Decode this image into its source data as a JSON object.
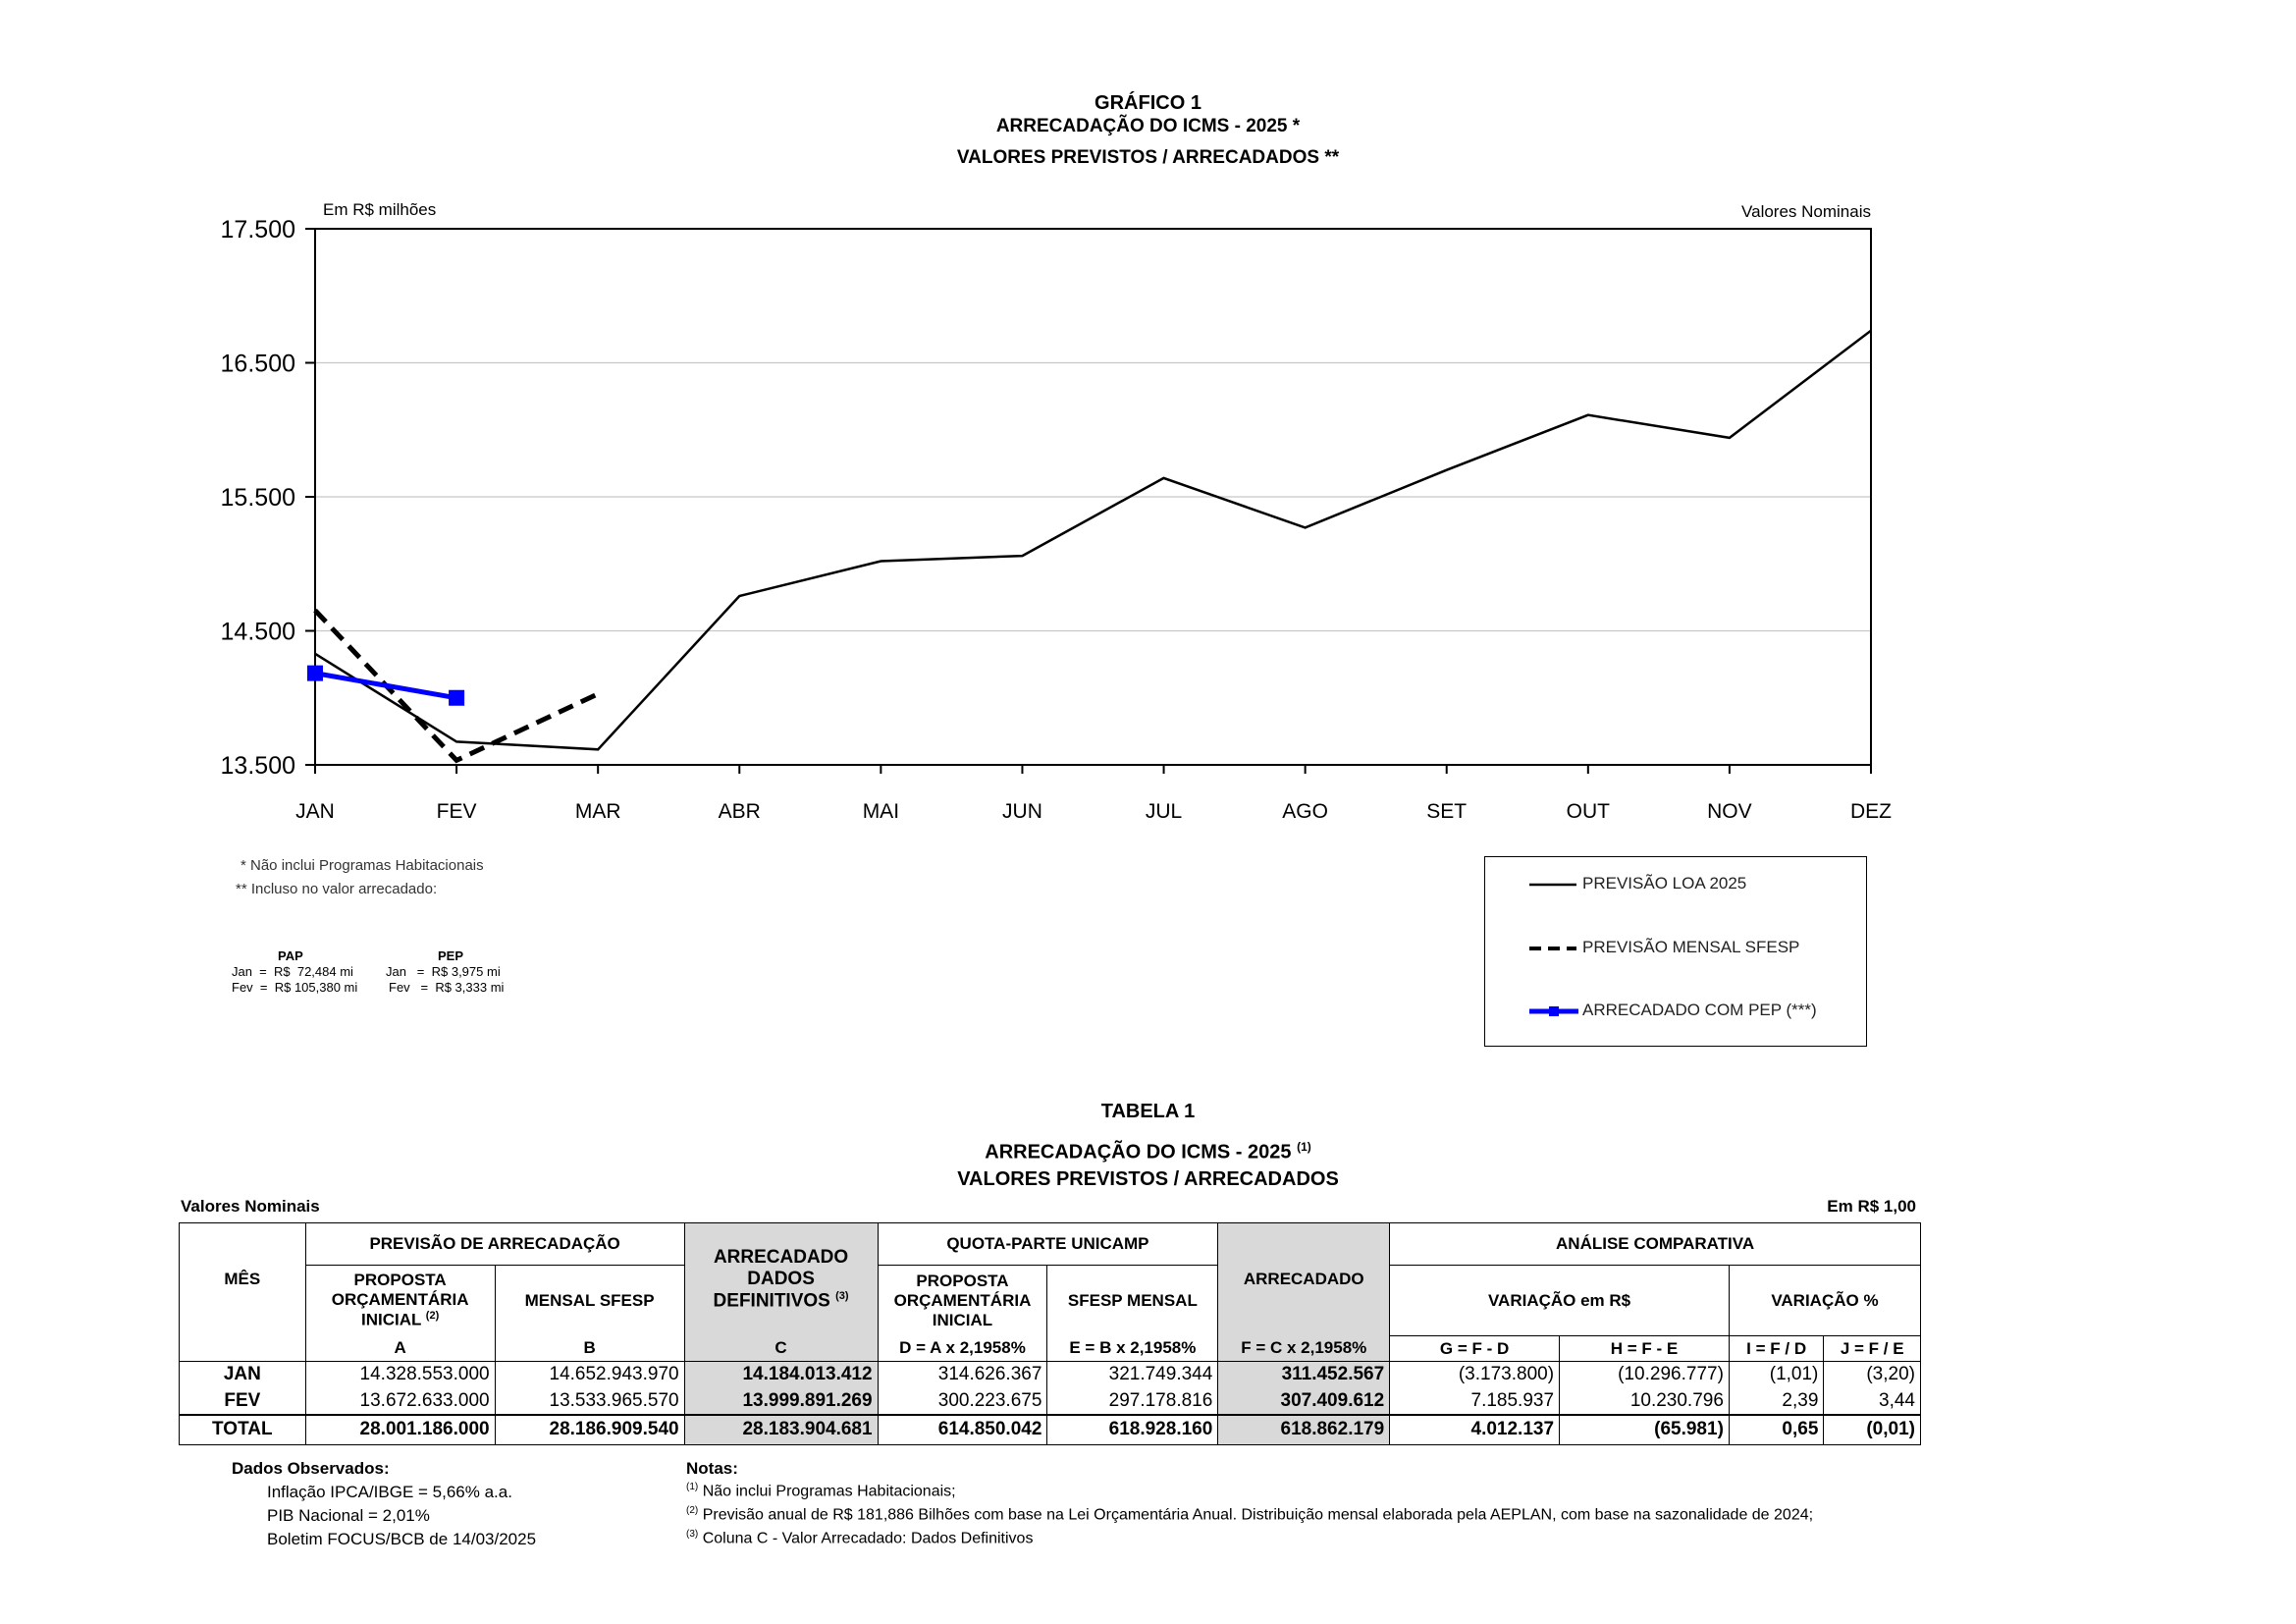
{
  "chart_header": {
    "title": "GRÁFICO 1",
    "subtitle1": "ARRECADAÇÃO DO ICMS - 2025 *",
    "subtitle2": "VALORES PREVISTOS / ARRECADADOS **",
    "unit_left": "Em R$ milhões",
    "unit_right": "Valores Nominais"
  },
  "chart_data": {
    "type": "line",
    "x": [
      "JAN",
      "FEV",
      "MAR",
      "ABR",
      "MAI",
      "JUN",
      "JUL",
      "AGO",
      "SET",
      "OUT",
      "NOV",
      "DEZ"
    ],
    "ylim": [
      13500,
      17500
    ],
    "yticks": [
      "13.500",
      "14.500",
      "15.500",
      "16.500",
      "17.500"
    ],
    "ytick_values": [
      13500,
      14500,
      15500,
      16500,
      17500
    ],
    "grid": true,
    "legend_position": "bottom-right",
    "series": [
      {
        "name": "PREVISÃO LOA 2025",
        "style": "solid",
        "color": "#000000",
        "values": [
          14329,
          13673,
          13615,
          14760,
          15020,
          15060,
          15640,
          15270,
          15700,
          16110,
          15940,
          16740
        ]
      },
      {
        "name": "PREVISÃO MENSAL SFESP",
        "style": "dashed",
        "color": "#000000",
        "values": [
          14653,
          13534,
          14030,
          null,
          null,
          null,
          null,
          null,
          null,
          null,
          null,
          null
        ]
      },
      {
        "name": "ARRECADADO COM PEP (***)",
        "style": "solid-marker",
        "color": "#0000ff",
        "values": [
          14184,
          14000,
          null,
          null,
          null,
          null,
          null,
          null,
          null,
          null,
          null,
          null
        ]
      }
    ]
  },
  "notes": {
    "n1": "* Não inclui Programas Habitacionais",
    "n2": "** Incluso no valor arrecadado:",
    "pap_head": "PAP",
    "pep_head": "PEP",
    "pap_jan": "Jan  =  R$  72,484 mi",
    "pap_fev": "Fev  =  R$ 105,380 mi",
    "pep_jan": "Jan   =  R$ 3,975 mi",
    "pep_fev": "Fev   =  R$ 3,333 mi"
  },
  "table_header": {
    "title": "TABELA 1",
    "subtitle1": "ARRECADAÇÃO DO ICMS - 2025",
    "subtitle1_sup": "(1)",
    "subtitle2": "VALORES PREVISTOS / ARRECADADOS",
    "left": "Valores Nominais",
    "right": "Em R$ 1,00"
  },
  "table": {
    "h_mes": "MÊS",
    "h_previsao": "PREVISÃO DE ARRECADAÇÃO",
    "h_arrec_dados": "ARRECADADO DADOS DEFINITIVOS",
    "h_arrec_sup": "(3)",
    "h_quota": "QUOTA-PARTE UNICAMP",
    "h_arrecadado": "ARRECADADO",
    "h_analise": "ANÁLISE COMPARATIVA",
    "h_proposta": "PROPOSTA ORÇAMENTÁRIA INICIAL",
    "h_proposta_sup": "(2)",
    "h_mensal": "MENSAL SFESP",
    "h_proposta2": "PROPOSTA ORÇAMENTÁRIA INICIAL",
    "h_sfesp_mensal": "SFESP MENSAL",
    "h_var_rs": "VARIAÇÃO em R$",
    "h_var_pct": "VARIAÇÃO %",
    "f_a": "A",
    "f_b": "B",
    "f_c": "C",
    "f_d": "D = A x 2,1958%",
    "f_e": "E = B x 2,1958%",
    "f_f": "F = C x 2,1958%",
    "f_g": "G = F - D",
    "f_h": "H = F - E",
    "f_i": "I = F / D",
    "f_j": "J = F / E",
    "rows": [
      {
        "mes": "JAN",
        "a": "14.328.553.000",
        "b": "14.652.943.970",
        "c": "14.184.013.412",
        "d": "314.626.367",
        "e": "321.749.344",
        "f": "311.452.567",
        "g": "(3.173.800)",
        "h": "(10.296.777)",
        "i": "(1,01)",
        "j": "(3,20)"
      },
      {
        "mes": "FEV",
        "a": "13.672.633.000",
        "b": "13.533.965.570",
        "c": "13.999.891.269",
        "d": "300.223.675",
        "e": "297.178.816",
        "f": "307.409.612",
        "g": "7.185.937",
        "h": "10.230.796",
        "i": "2,39",
        "j": "3,44"
      }
    ],
    "total": {
      "mes": "TOTAL",
      "a": "28.001.186.000",
      "b": "28.186.909.540",
      "c": "28.183.904.681",
      "d": "614.850.042",
      "e": "618.928.160",
      "f": "618.862.179",
      "g": "4.012.137",
      "h": "(65.981)",
      "i": "0,65",
      "j": "(0,01)"
    }
  },
  "footer": {
    "obs_title": "Dados Observados:",
    "obs1": "Inflação IPCA/IBGE = 5,66% a.a.",
    "obs2": "PIB Nacional = 2,01%",
    "obs3": "Boletim FOCUS/BCB de 14/03/2025",
    "notas_title": "Notas:",
    "nota1_sup": "(1)",
    "nota1": "Não inclui Programas Habitacionais;",
    "nota2_sup": "(2)",
    "nota2": "Previsão anual de R$ 181,886 Bilhões com base na Lei Orçamentária Anual. Distribuição mensal elaborada pela AEPLAN, com base na sazonalidade de 2024;",
    "nota3_sup": "(3)",
    "nota3": "Coluna C - Valor Arrecadado: Dados Definitivos"
  }
}
